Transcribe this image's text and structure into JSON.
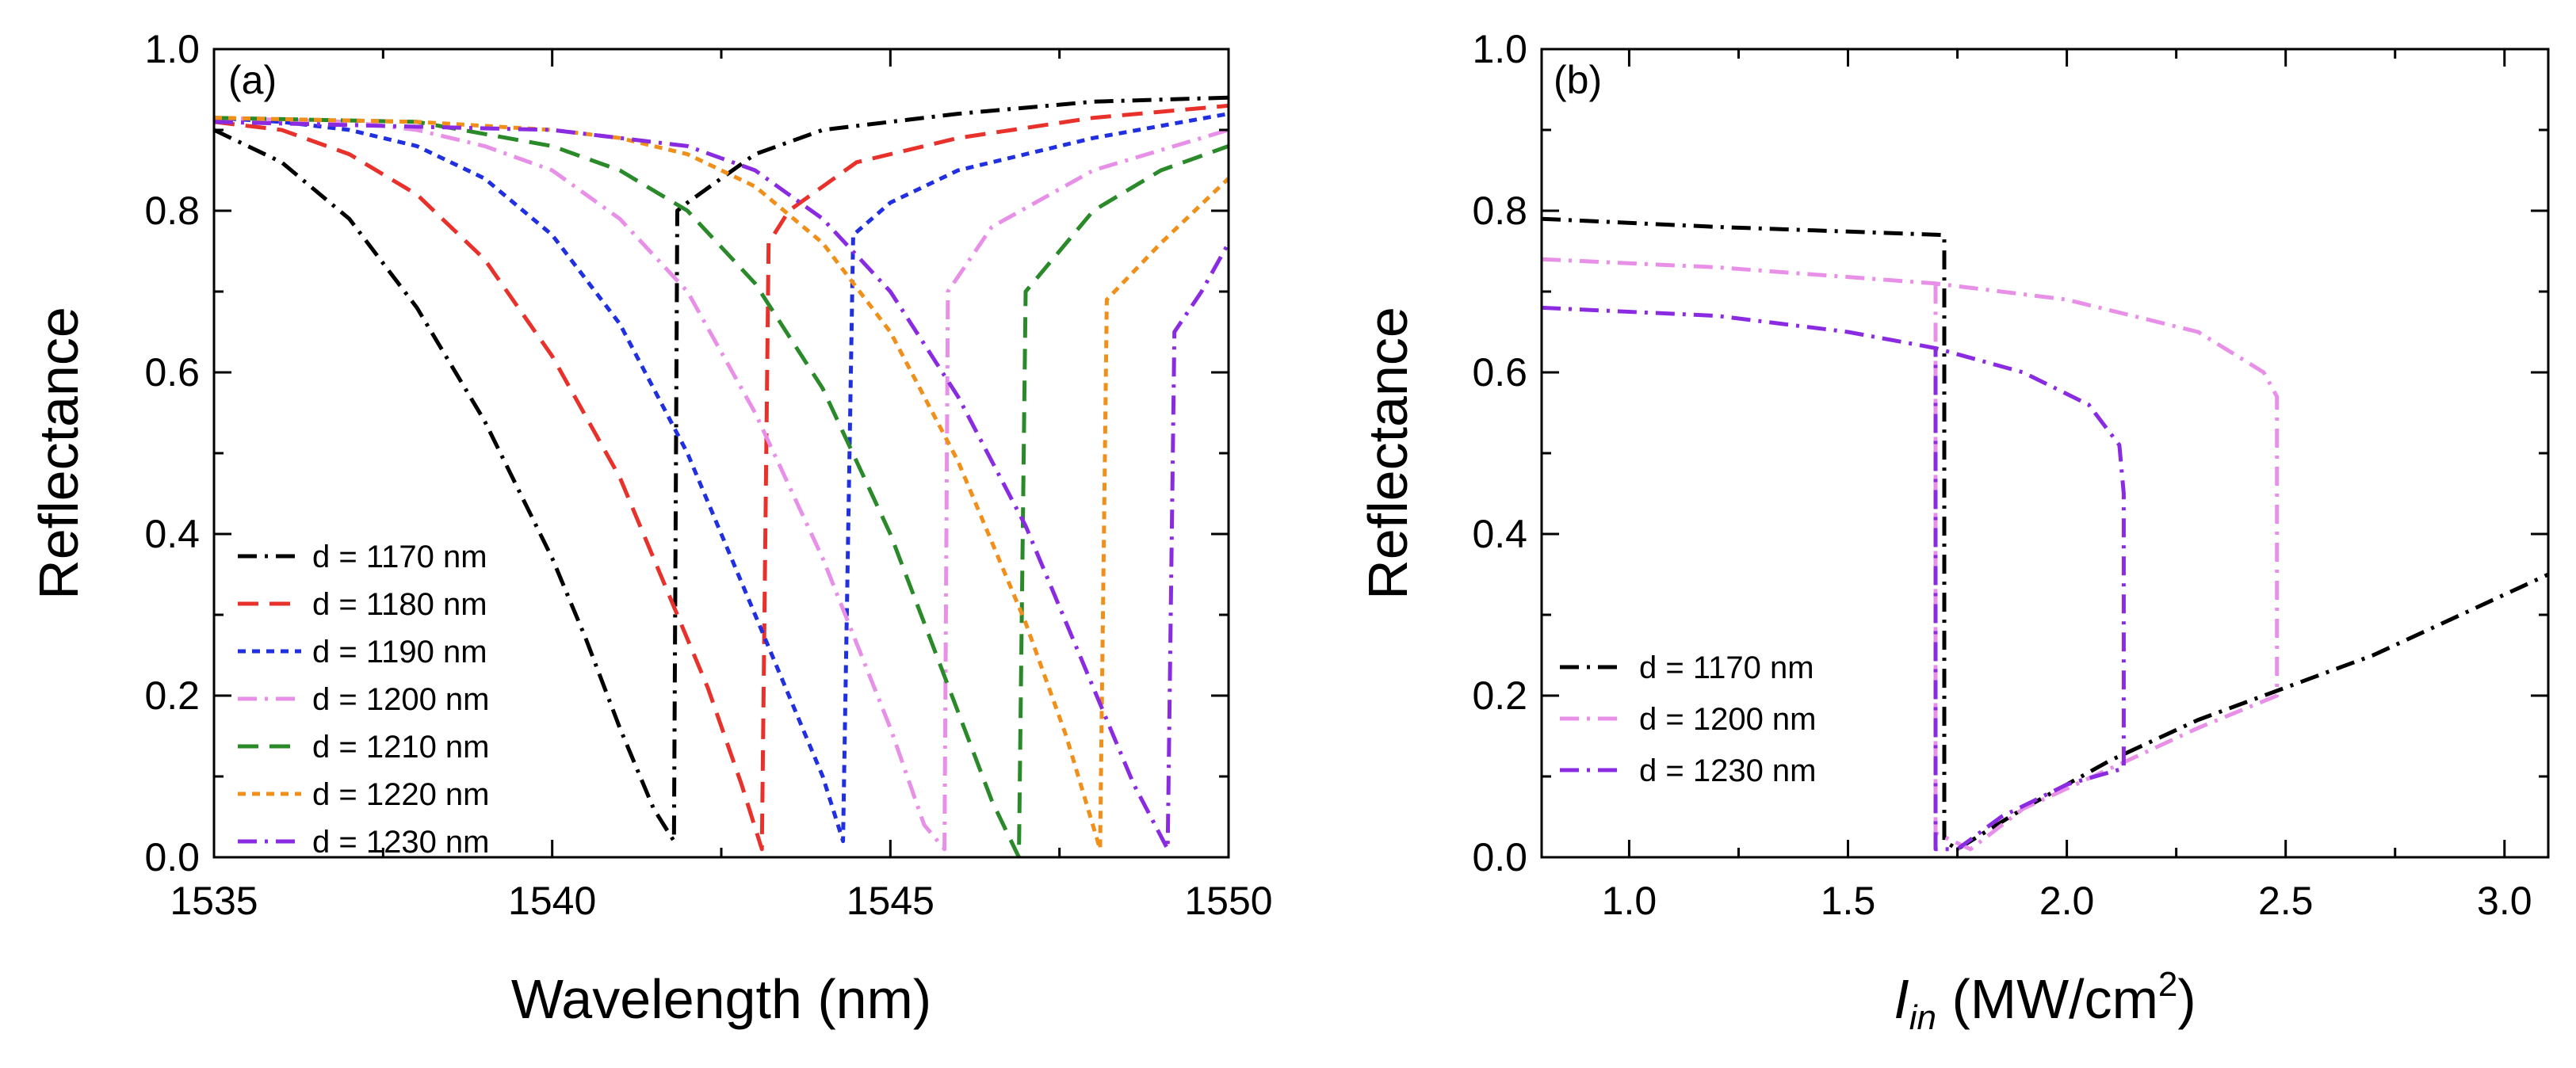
{
  "chart_data": [
    {
      "type": "line",
      "panel_label": "(a)",
      "xlabel": "Wavelength (nm)",
      "ylabel": "Reflectance",
      "xlim": [
        1535,
        1550
      ],
      "ylim": [
        0.0,
        1.0
      ],
      "xticks": [
        1535,
        1540,
        1545,
        1550
      ],
      "xtick_labels": [
        "1535",
        "1540",
        "1545",
        "1550"
      ],
      "yticks": [
        0.0,
        0.2,
        0.4,
        0.6,
        0.8,
        1.0
      ],
      "ytick_labels": [
        "0.0",
        "0.2",
        "0.4",
        "0.6",
        "0.8",
        "1.0"
      ],
      "grid": false,
      "legend_position": "bottom-left",
      "series": [
        {
          "name": "d = 1170 nm",
          "color": "#000000",
          "dash": "dashdot",
          "x": [
            1535,
            1536,
            1537,
            1538,
            1539,
            1540,
            1540.5,
            1541,
            1541.5,
            1541.8,
            1541.85,
            1542,
            1543,
            1544,
            1546,
            1548,
            1550
          ],
          "y": [
            0.9,
            0.86,
            0.79,
            0.68,
            0.54,
            0.37,
            0.27,
            0.16,
            0.06,
            0.02,
            0.8,
            0.81,
            0.87,
            0.9,
            0.92,
            0.935,
            0.94
          ]
        },
        {
          "name": "d = 1180 nm",
          "color": "#e8312a",
          "dash": "dash",
          "x": [
            1535,
            1536,
            1537,
            1538,
            1539,
            1540,
            1541,
            1541.7,
            1542.3,
            1542.8,
            1543.1,
            1543.2,
            1543.5,
            1544.5,
            1546,
            1548,
            1550
          ],
          "y": [
            0.91,
            0.9,
            0.87,
            0.82,
            0.74,
            0.62,
            0.47,
            0.33,
            0.21,
            0.09,
            0.01,
            0.76,
            0.8,
            0.86,
            0.89,
            0.915,
            0.93
          ]
        },
        {
          "name": "d = 1190 nm",
          "color": "#2030e0",
          "dash": "dot",
          "x": [
            1535,
            1536,
            1537,
            1538,
            1539,
            1540,
            1541,
            1542,
            1543,
            1544,
            1544.3,
            1544.45,
            1545,
            1546,
            1548,
            1550
          ],
          "y": [
            0.915,
            0.91,
            0.9,
            0.88,
            0.84,
            0.77,
            0.66,
            0.5,
            0.3,
            0.1,
            0.02,
            0.77,
            0.81,
            0.85,
            0.89,
            0.92
          ]
        },
        {
          "name": "d = 1200 nm",
          "color": "#e890e8",
          "dash": "dashdot",
          "x": [
            1535,
            1537,
            1538,
            1539,
            1540,
            1541,
            1542,
            1543,
            1544,
            1545,
            1545.5,
            1545.8,
            1545.85,
            1546.5,
            1548,
            1550
          ],
          "y": [
            0.915,
            0.91,
            0.9,
            0.88,
            0.85,
            0.79,
            0.7,
            0.55,
            0.37,
            0.16,
            0.04,
            0.01,
            0.7,
            0.78,
            0.85,
            0.9
          ]
        },
        {
          "name": "d = 1210 nm",
          "color": "#2a8a2a",
          "dash": "dash",
          "x": [
            1535,
            1538,
            1540,
            1541,
            1542,
            1543,
            1544,
            1545,
            1546,
            1546.5,
            1546.9,
            1547.0,
            1548,
            1549,
            1550
          ],
          "y": [
            0.915,
            0.91,
            0.88,
            0.85,
            0.8,
            0.71,
            0.58,
            0.4,
            0.18,
            0.07,
            0.0,
            0.7,
            0.8,
            0.85,
            0.88
          ]
        },
        {
          "name": "d = 1220 nm",
          "color": "#f0901a",
          "dash": "dot",
          "x": [
            1535,
            1538,
            1540,
            1541,
            1542,
            1543,
            1544,
            1545,
            1546,
            1547,
            1547.6,
            1548.1,
            1548.2,
            1549,
            1550
          ],
          "y": [
            0.915,
            0.91,
            0.9,
            0.89,
            0.87,
            0.83,
            0.76,
            0.65,
            0.49,
            0.29,
            0.15,
            0.01,
            0.69,
            0.76,
            0.84
          ]
        },
        {
          "name": "d = 1230 nm",
          "color": "#8a2be2",
          "dash": "dashdot",
          "x": [
            1535,
            1540,
            1542,
            1543,
            1544,
            1545,
            1546,
            1547,
            1548,
            1548.6,
            1549.1,
            1549.2,
            1549.6,
            1550
          ],
          "y": [
            0.91,
            0.9,
            0.88,
            0.85,
            0.79,
            0.7,
            0.57,
            0.41,
            0.21,
            0.09,
            0.01,
            0.65,
            0.7,
            0.76
          ]
        }
      ]
    },
    {
      "type": "line",
      "panel_label": "(b)",
      "xlabel": "I",
      "xlabel_sub": "in",
      "xlabel_unit": " (MW/cm",
      "xlabel_sup": "2",
      "xlabel_close": ")",
      "ylabel": "Reflectance",
      "xlim": [
        0.8,
        3.1
      ],
      "ylim": [
        0.0,
        1.0
      ],
      "xticks": [
        1.0,
        1.5,
        2.0,
        2.5,
        3.0
      ],
      "xtick_labels": [
        "1.0",
        "1.5",
        "2.0",
        "2.5",
        "3.0"
      ],
      "yticks": [
        0.0,
        0.2,
        0.4,
        0.6,
        0.8,
        1.0
      ],
      "ytick_labels": [
        "0.0",
        "0.2",
        "0.4",
        "0.6",
        "0.8",
        "1.0"
      ],
      "grid": false,
      "legend_position": "bottom-left",
      "series": [
        {
          "name": "d = 1170 nm",
          "color": "#000000",
          "dash": "dashdot",
          "x": [
            0.8,
            1.2,
            1.72,
            1.72,
            1.75,
            1.9,
            2.1,
            2.3,
            2.5,
            2.7,
            2.9,
            3.1
          ],
          "y": [
            0.79,
            0.78,
            0.77,
            0.02,
            0.01,
            0.06,
            0.12,
            0.17,
            0.21,
            0.25,
            0.3,
            0.35
          ]
        },
        {
          "name": "d = 1200 nm",
          "color": "#e890e8",
          "dash": "dashdot",
          "x": [
            0.8,
            1.2,
            1.7,
            2.0,
            2.3,
            2.45,
            2.48,
            2.48,
            2.3,
            2.1,
            1.9,
            1.78,
            1.7,
            1.7
          ],
          "y": [
            0.74,
            0.73,
            0.71,
            0.69,
            0.65,
            0.6,
            0.57,
            0.2,
            0.16,
            0.11,
            0.06,
            0.01,
            0.03,
            0.71
          ]
        },
        {
          "name": "d = 1230 nm",
          "color": "#8a2be2",
          "dash": "dashdot",
          "x": [
            0.8,
            1.2,
            1.5,
            1.7,
            1.9,
            2.05,
            2.12,
            2.13,
            2.13,
            2.0,
            1.85,
            1.75,
            1.7,
            1.7
          ],
          "y": [
            0.68,
            0.67,
            0.65,
            0.63,
            0.6,
            0.56,
            0.51,
            0.45,
            0.11,
            0.09,
            0.05,
            0.01,
            0.01,
            0.63
          ]
        }
      ]
    }
  ]
}
